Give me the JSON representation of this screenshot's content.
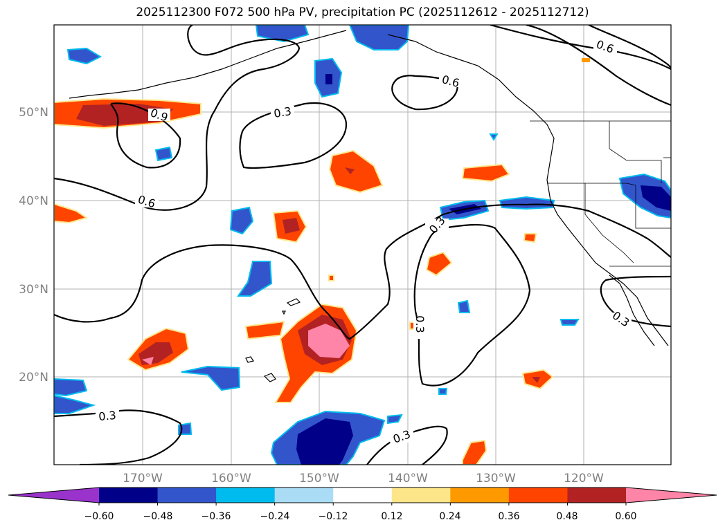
{
  "title": "2025112300 F072 500 hPa PV, precipitation PC (2025112612 - 2025112712)",
  "map": {
    "lat_labels": [
      "50°N",
      "40°N",
      "30°N",
      "20°N"
    ],
    "lon_labels": [
      "170°W",
      "160°W",
      "150°W",
      "140°W",
      "130°W",
      "120°W"
    ],
    "contour_labels": [
      "0.9",
      "0.3",
      "0.6",
      "0.6",
      "0.6",
      "0.3",
      "0.3",
      "0.3",
      "0.3",
      "0.3"
    ]
  },
  "colorbar": {
    "ticks": [
      "−0.60",
      "−0.48",
      "−0.36",
      "−0.24",
      "−0.12",
      "0.12",
      "0.24",
      "0.36",
      "0.48",
      "0.60"
    ],
    "colors": [
      "#9933cc",
      "#000088",
      "#3355cc",
      "#00bbee",
      "#aaddf5",
      "#ffffff",
      "#fde68a",
      "#ff9900",
      "#ff4400",
      "#b22222",
      "#ff85a8"
    ]
  }
}
